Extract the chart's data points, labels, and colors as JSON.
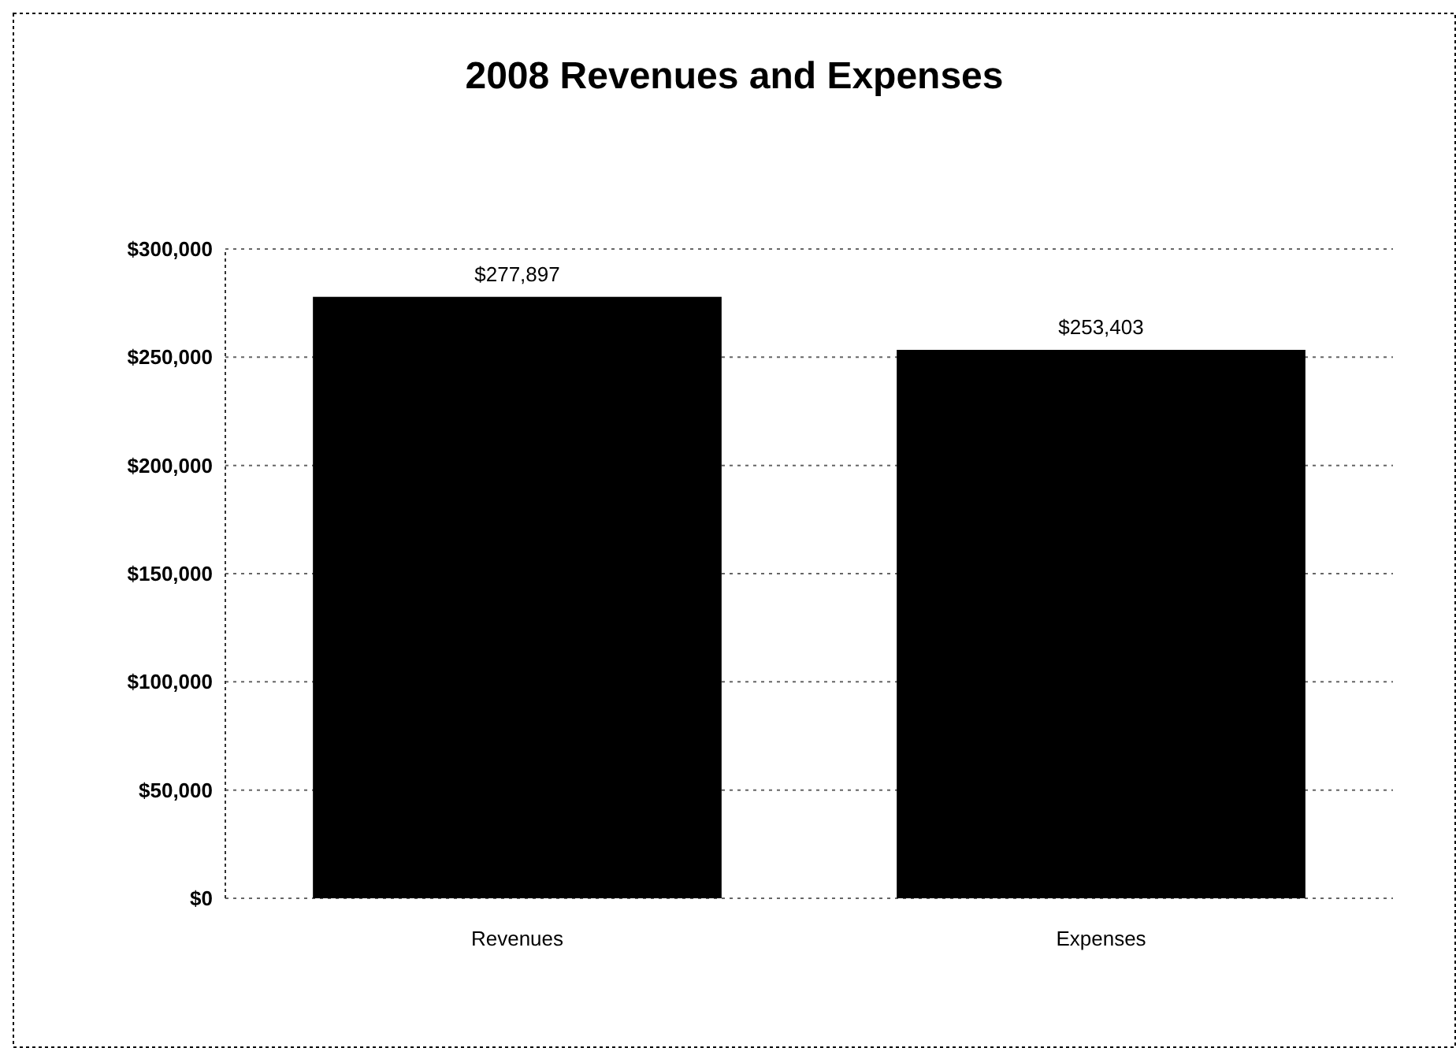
{
  "chart_data": {
    "type": "bar",
    "title": "2008 Revenues and Expenses",
    "categories": [
      "Revenues",
      "Expenses"
    ],
    "values": [
      277897,
      253403
    ],
    "value_labels": [
      "$277,897",
      "$253,403"
    ],
    "color": "#000000",
    "ylim": [
      0,
      300000
    ],
    "yticks": [
      {
        "value": 0,
        "label": "$0"
      },
      {
        "value": 50000,
        "label": "$50,000"
      },
      {
        "value": 100000,
        "label": "$100,000"
      },
      {
        "value": 150000,
        "label": "$150,000"
      },
      {
        "value": 200000,
        "label": "$200,000"
      },
      {
        "value": 250000,
        "label": "$250,000"
      },
      {
        "value": 300000,
        "label": "$300,000"
      }
    ],
    "grid": "y"
  }
}
